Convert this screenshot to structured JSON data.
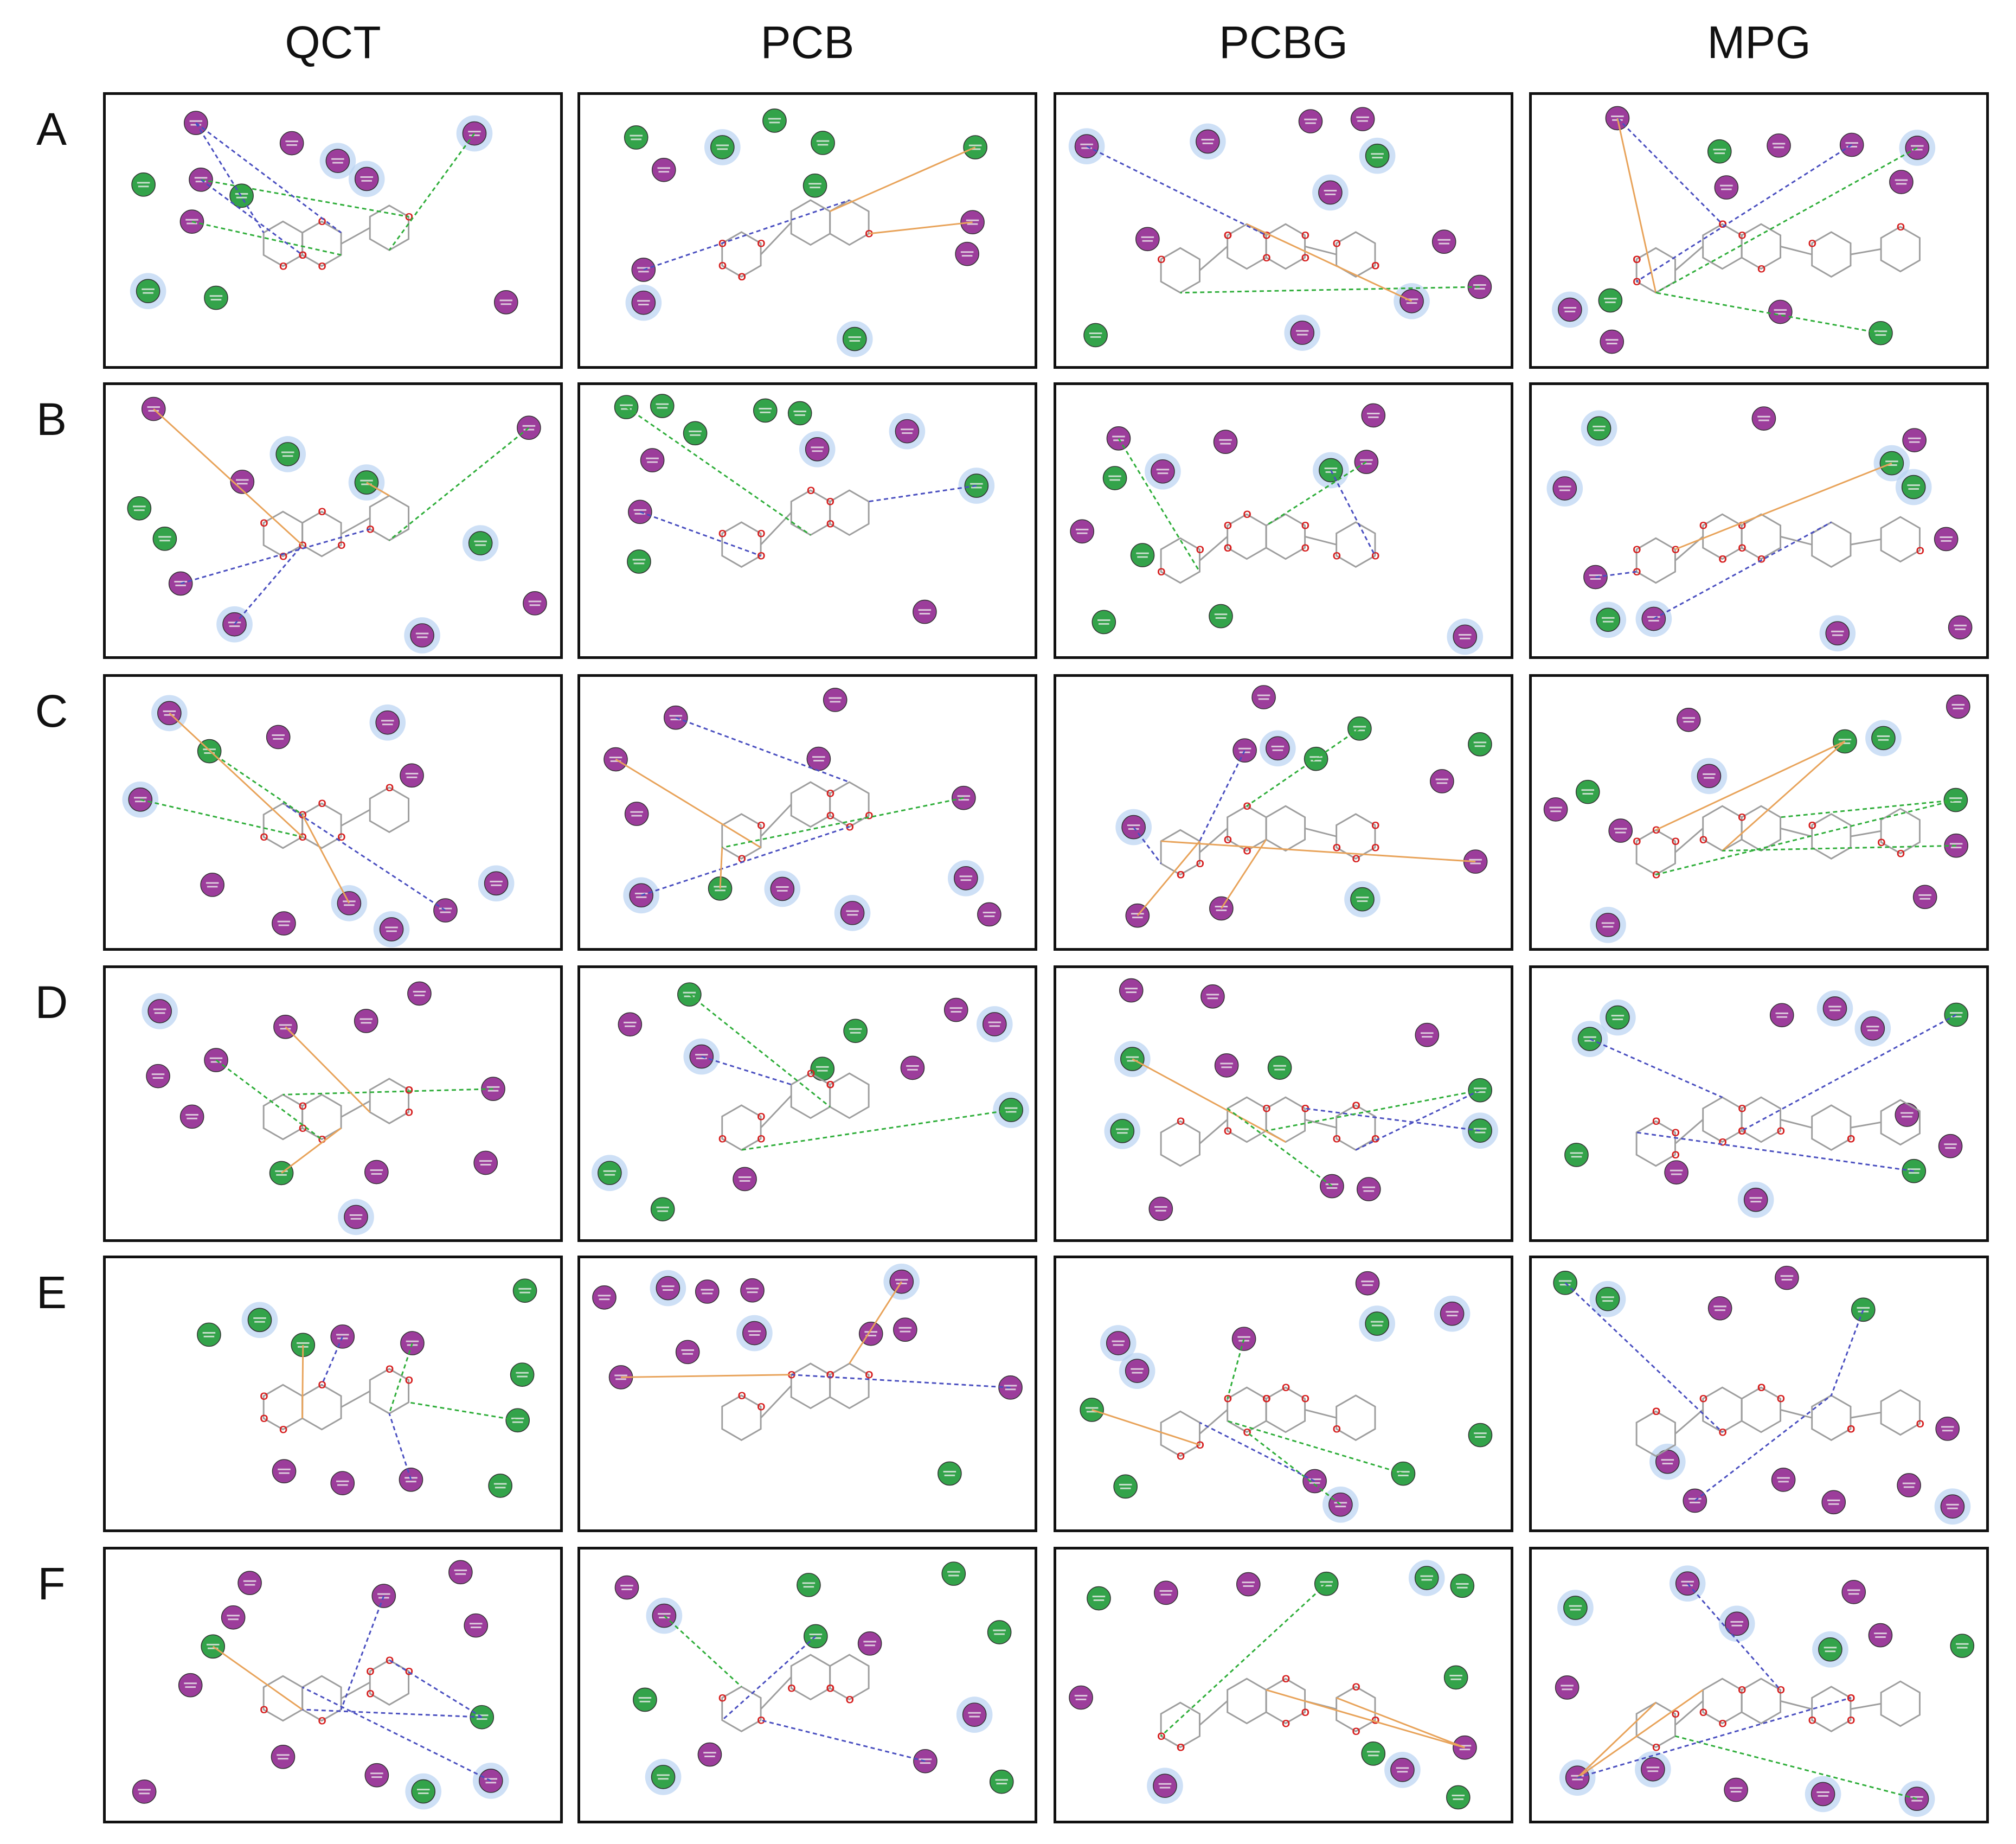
{
  "columns": [
    "QCT",
    "PCB",
    "PCBG",
    "MPG"
  ],
  "rows": [
    "A",
    "B",
    "C",
    "D",
    "E",
    "F"
  ],
  "colors": {
    "residue_purple": "#9c3d9b",
    "residue_green": "#33a34a",
    "halo_blue": "#b9d3f2",
    "bond": "#9e9e9e",
    "oxygen": "#d62020",
    "hbond_green": "#2fae3a",
    "hbond_blue": "#4a4fc0",
    "pi_orange": "#e8a35a",
    "border": "#111111"
  },
  "icons": [
    "residue-circle-icon",
    "molecule-icon",
    "hydrogen-bond-icon",
    "pi-interaction-icon"
  ]
}
